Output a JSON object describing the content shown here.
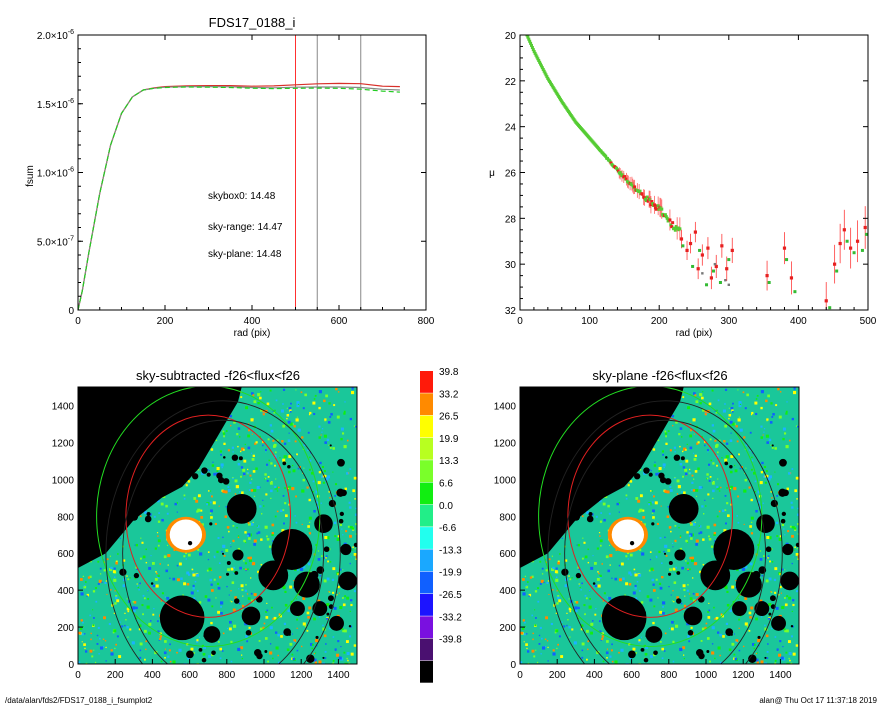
{
  "chart_data": [
    {
      "type": "line",
      "title": "FDS17_0188_i",
      "xlabel": "rad (pix)",
      "ylabel": "fsum",
      "xlim": [
        0,
        800
      ],
      "ylim": [
        0,
        2e-06
      ],
      "xticks": [
        "0",
        "200",
        "400",
        "600",
        "800"
      ],
      "yticks": [
        {
          "base": "0",
          "exp": ""
        },
        {
          "base": "5.0×10",
          "exp": "-7"
        },
        {
          "base": "1.0×10",
          "exp": "-6"
        },
        {
          "base": "1.5×10",
          "exp": "-6"
        },
        {
          "base": "2.0×10",
          "exp": "-6"
        }
      ],
      "vlines": [
        {
          "x": 500,
          "color": "#ff3030"
        },
        {
          "x": 550,
          "color": "#888888"
        },
        {
          "x": 650,
          "color": "#888888"
        }
      ],
      "series": [
        {
          "color": "#d8302a",
          "dash": false,
          "x": [
            0,
            10,
            25,
            50,
            75,
            100,
            125,
            150,
            175,
            200,
            250,
            300,
            350,
            400,
            450,
            500,
            550,
            600,
            650,
            700,
            740
          ],
          "y": [
            0,
            1.4e-07,
            4.2e-07,
            8.5e-07,
            1.2e-06,
            1.43e-06,
            1.55e-06,
            1.6e-06,
            1.615e-06,
            1.625e-06,
            1.63e-06,
            1.632e-06,
            1.632e-06,
            1.628e-06,
            1.63e-06,
            1.638e-06,
            1.645e-06,
            1.648e-06,
            1.646e-06,
            1.628e-06,
            1.625e-06
          ]
        },
        {
          "color": "#888888",
          "dash": false,
          "x": [
            0,
            10,
            25,
            50,
            75,
            100,
            125,
            150,
            175,
            200,
            250,
            300,
            350,
            400,
            450,
            500,
            550,
            600,
            650,
            700,
            740
          ],
          "y": [
            0,
            1.4e-07,
            4.2e-07,
            8.5e-07,
            1.2e-06,
            1.43e-06,
            1.55e-06,
            1.6e-06,
            1.612e-06,
            1.62e-06,
            1.625e-06,
            1.625e-06,
            1.623e-06,
            1.618e-06,
            1.616e-06,
            1.62e-06,
            1.622e-06,
            1.622e-06,
            1.618e-06,
            1.605e-06,
            1.6e-06
          ]
        },
        {
          "color": "#22cc22",
          "dash": true,
          "x": [
            0,
            10,
            25,
            50,
            75,
            100,
            125,
            150,
            175,
            200,
            250,
            300,
            350,
            400,
            450,
            500,
            550,
            600,
            650,
            700,
            740
          ],
          "y": [
            0,
            1.4e-07,
            4.2e-07,
            8.5e-07,
            1.2e-06,
            1.43e-06,
            1.55e-06,
            1.6e-06,
            1.612e-06,
            1.618e-06,
            1.622e-06,
            1.62e-06,
            1.618e-06,
            1.613e-06,
            1.61e-06,
            1.612e-06,
            1.614e-06,
            1.612e-06,
            1.606e-06,
            1.592e-06,
            1.585e-06
          ]
        }
      ],
      "annotations": [
        {
          "text": "skybox0: 14.48",
          "color": "#000000"
        },
        {
          "text": "sky-range: 14.47",
          "color": "#ff2020"
        },
        {
          "text": "sky-plane: 14.48",
          "color": "#22dd22"
        }
      ]
    },
    {
      "type": "scatter",
      "title": "",
      "xlabel": "rad (pix)",
      "ylabel": "μ",
      "xlim": [
        0,
        500
      ],
      "ylim": [
        32,
        20
      ],
      "xticks": [
        "0",
        "100",
        "200",
        "300",
        "400",
        "500"
      ],
      "yticks": [
        "20",
        "22",
        "24",
        "26",
        "28",
        "30",
        "32"
      ],
      "profile": {
        "x": [
          10,
          20,
          40,
          60,
          80,
          100,
          120,
          140,
          160,
          180,
          200,
          210,
          220,
          230
        ],
        "y": [
          20.0,
          20.7,
          21.9,
          22.9,
          23.8,
          24.5,
          25.2,
          25.9,
          26.5,
          27.1,
          27.6,
          27.9,
          28.3,
          28.6
        ]
      },
      "red_points": [
        {
          "x": 232,
          "y": 28.9
        },
        {
          "x": 240,
          "y": 29.4
        },
        {
          "x": 245,
          "y": 29.1
        },
        {
          "x": 252,
          "y": 28.6
        },
        {
          "x": 256,
          "y": 30.2
        },
        {
          "x": 262,
          "y": 29.6
        },
        {
          "x": 270,
          "y": 29.3
        },
        {
          "x": 275,
          "y": 30.6
        },
        {
          "x": 282,
          "y": 30.1
        },
        {
          "x": 290,
          "y": 29.2
        },
        {
          "x": 297,
          "y": 30.2
        },
        {
          "x": 305,
          "y": 29.4
        },
        {
          "x": 355,
          "y": 30.5
        },
        {
          "x": 380,
          "y": 29.3
        },
        {
          "x": 390,
          "y": 30.6
        },
        {
          "x": 440,
          "y": 31.6
        },
        {
          "x": 452,
          "y": 30.0
        },
        {
          "x": 460,
          "y": 29.1
        },
        {
          "x": 466,
          "y": 28.5
        },
        {
          "x": 475,
          "y": 29.3
        },
        {
          "x": 485,
          "y": 29.0
        },
        {
          "x": 496,
          "y": 28.4
        }
      ],
      "green_points": [
        {
          "x": 234,
          "y": 29.2
        },
        {
          "x": 248,
          "y": 30.1
        },
        {
          "x": 258,
          "y": 29.4
        },
        {
          "x": 268,
          "y": 30.9
        },
        {
          "x": 278,
          "y": 30.3
        },
        {
          "x": 288,
          "y": 30.8
        },
        {
          "x": 300,
          "y": 29.8
        },
        {
          "x": 358,
          "y": 30.8
        },
        {
          "x": 383,
          "y": 29.8
        },
        {
          "x": 395,
          "y": 31.2
        },
        {
          "x": 445,
          "y": 31.9
        },
        {
          "x": 455,
          "y": 30.3
        },
        {
          "x": 470,
          "y": 29.0
        },
        {
          "x": 480,
          "y": 29.5
        },
        {
          "x": 492,
          "y": 29.4
        },
        {
          "x": 498,
          "y": 28.7
        }
      ]
    },
    {
      "type": "heatmap",
      "title": "sky-subtracted -f26<flux<f26",
      "xlim": [
        0,
        1500
      ],
      "ylim": [
        0,
        1500
      ],
      "xticks": [
        "0",
        "200",
        "400",
        "600",
        "800",
        "1000",
        "1200",
        "1400"
      ],
      "yticks": [
        "0",
        "200",
        "400",
        "600",
        "800",
        "1000",
        "1200",
        "1400"
      ]
    },
    {
      "type": "heatmap",
      "title": "sky-plane -f26<flux<f26",
      "xlim": [
        0,
        1500
      ],
      "ylim": [
        0,
        1500
      ],
      "xticks": [
        "0",
        "200",
        "400",
        "600",
        "800",
        "1000",
        "1200",
        "1400"
      ],
      "yticks": [
        "0",
        "200",
        "400",
        "600",
        "800",
        "1000",
        "1200",
        "1400"
      ]
    }
  ],
  "colorbar": {
    "labels": [
      "39.8",
      "33.2",
      "26.5",
      "19.9",
      "13.3",
      "6.6",
      "0.0",
      "-6.6",
      "-13.3",
      "-19.9",
      "-26.5",
      "-33.2",
      "-39.8"
    ],
    "colors": [
      "#ff1a0a",
      "#ff8a00",
      "#ffff00",
      "#b8ff20",
      "#7aff2a",
      "#11ee11",
      "#22ee88",
      "#22ffee",
      "#1aa8ff",
      "#1060ff",
      "#1c14ff",
      "#7a10e0",
      "#4a1070",
      "#000000"
    ]
  },
  "image_palette": {
    "background": "#1ac79a",
    "speckle": [
      "#1ab3ff",
      "#1060ff",
      "#ffff00",
      "#7aff2a",
      "#ff8a00",
      "#11ee11"
    ],
    "mask": "#000000",
    "saturated": "#ffffff"
  },
  "footer": {
    "left": "/data/alan/fds2/FDS17_0188_i_fsumplot2",
    "right": "alan@  Thu Oct 17 11:37:18 2019"
  }
}
